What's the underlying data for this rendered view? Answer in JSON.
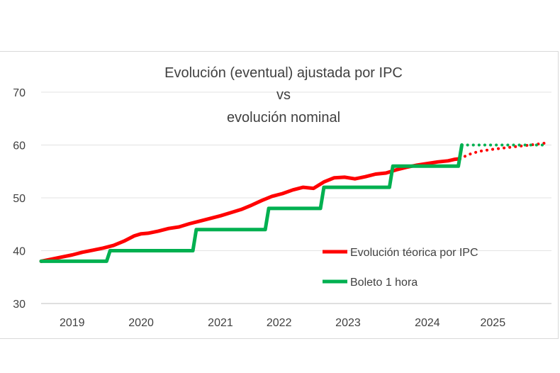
{
  "chart_data": {
    "type": "line",
    "title": [
      "Evolución (eventual) ajustada por IPC",
      "vs",
      "evolución nominal"
    ],
    "xlabel": "",
    "ylabel": "",
    "ylim": [
      30,
      70
    ],
    "yticks": [
      30,
      40,
      50,
      60,
      70
    ],
    "xlim": [
      2018.55,
      2025.95
    ],
    "xtick_labels": [
      {
        "label": "2019",
        "at": 2019.0
      },
      {
        "label": "2020",
        "at": 2020.0
      },
      {
        "label": "2021",
        "at": 2021.15
      },
      {
        "label": "2022",
        "at": 2022.0
      },
      {
        "label": "2023",
        "at": 2023.0
      },
      {
        "label": "2024",
        "at": 2024.15
      },
      {
        "label": "2025",
        "at": 2025.1
      }
    ],
    "grid": true,
    "legend_position": "bottom-right",
    "series": [
      {
        "name": "Evolución téorica por IPC",
        "color": "#ff0000",
        "x": [
          2018.55,
          2018.7,
          2018.85,
          2019.0,
          2019.15,
          2019.3,
          2019.45,
          2019.6,
          2019.75,
          2019.9,
          2020.0,
          2020.1,
          2020.25,
          2020.4,
          2020.55,
          2020.7,
          2020.85,
          2021.0,
          2021.15,
          2021.3,
          2021.45,
          2021.6,
          2021.75,
          2021.9,
          2022.05,
          2022.2,
          2022.35,
          2022.5,
          2022.65,
          2022.8,
          2022.95,
          2023.1,
          2023.25,
          2023.4,
          2023.55,
          2023.7,
          2023.85,
          2024.0,
          2024.15,
          2024.3,
          2024.45,
          2024.55,
          2024.62
        ],
        "values": [
          38.0,
          38.4,
          38.8,
          39.2,
          39.7,
          40.1,
          40.5,
          41.0,
          41.8,
          42.8,
          43.2,
          43.3,
          43.7,
          44.2,
          44.5,
          45.1,
          45.6,
          46.1,
          46.6,
          47.2,
          47.8,
          48.6,
          49.5,
          50.3,
          50.8,
          51.5,
          52.0,
          51.8,
          53.0,
          53.8,
          53.9,
          53.6,
          54.0,
          54.5,
          54.7,
          55.3,
          55.8,
          56.2,
          56.5,
          56.8,
          57.0,
          57.3,
          57.4
        ],
        "projection": {
          "x": [
            2024.62,
            2024.75,
            2024.9,
            2025.1,
            2025.3,
            2025.5,
            2025.7,
            2025.88
          ],
          "values": [
            57.4,
            58.2,
            58.8,
            59.2,
            59.5,
            59.8,
            60.1,
            60.4
          ]
        }
      },
      {
        "name": "Boleto 1 hora",
        "color": "#00b050",
        "x": [
          2018.55,
          2019.5,
          2019.55,
          2020.75,
          2020.8,
          2021.8,
          2021.85,
          2022.6,
          2022.65,
          2023.6,
          2023.65,
          2024.6,
          2024.65
        ],
        "values": [
          38,
          38,
          40,
          40,
          44,
          44,
          48,
          48,
          52,
          52,
          56,
          56,
          60
        ],
        "projection": {
          "x": [
            2024.65,
            2025.0,
            2025.4,
            2025.88
          ],
          "values": [
            60,
            60,
            60,
            60
          ]
        }
      }
    ]
  }
}
